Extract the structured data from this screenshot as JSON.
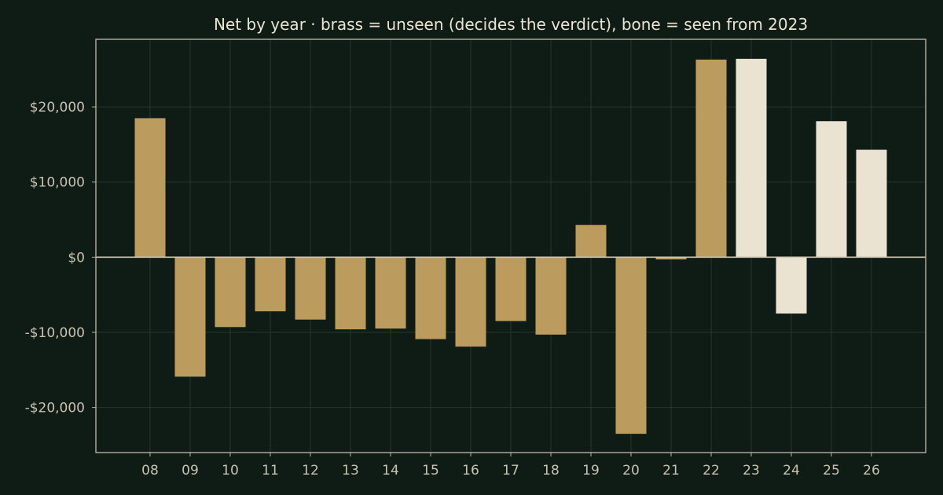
{
  "chart_data": {
    "type": "bar",
    "title": "Net by year  ·  brass = unseen (decides the verdict), bone = seen from 2023",
    "xlabel": "",
    "ylabel": "",
    "categories": [
      "08",
      "09",
      "10",
      "11",
      "12",
      "13",
      "14",
      "15",
      "16",
      "17",
      "18",
      "19",
      "20",
      "21",
      "22",
      "23",
      "24",
      "25",
      "26"
    ],
    "values": [
      18500,
      -15900,
      -9300,
      -7200,
      -8300,
      -9600,
      -9500,
      -10900,
      -11900,
      -8500,
      -10300,
      4300,
      -23500,
      -300,
      26300,
      26400,
      -7500,
      18100,
      14300
    ],
    "groups": [
      "unseen",
      "unseen",
      "unseen",
      "unseen",
      "unseen",
      "unseen",
      "unseen",
      "unseen",
      "unseen",
      "unseen",
      "unseen",
      "unseen",
      "unseen",
      "unseen",
      "unseen",
      "seen",
      "seen",
      "seen",
      "seen"
    ],
    "group_colors": {
      "unseen": "#bc9b5f",
      "seen": "#ebe3d2"
    },
    "ylim": [
      -26000,
      29000
    ],
    "yticks": [
      -20000,
      -10000,
      0,
      10000,
      20000
    ],
    "ytick_labels": [
      "-$20,000",
      "-$10,000",
      "$0",
      "$10,000",
      "$20,000"
    ],
    "grid": true,
    "legend": "none"
  }
}
